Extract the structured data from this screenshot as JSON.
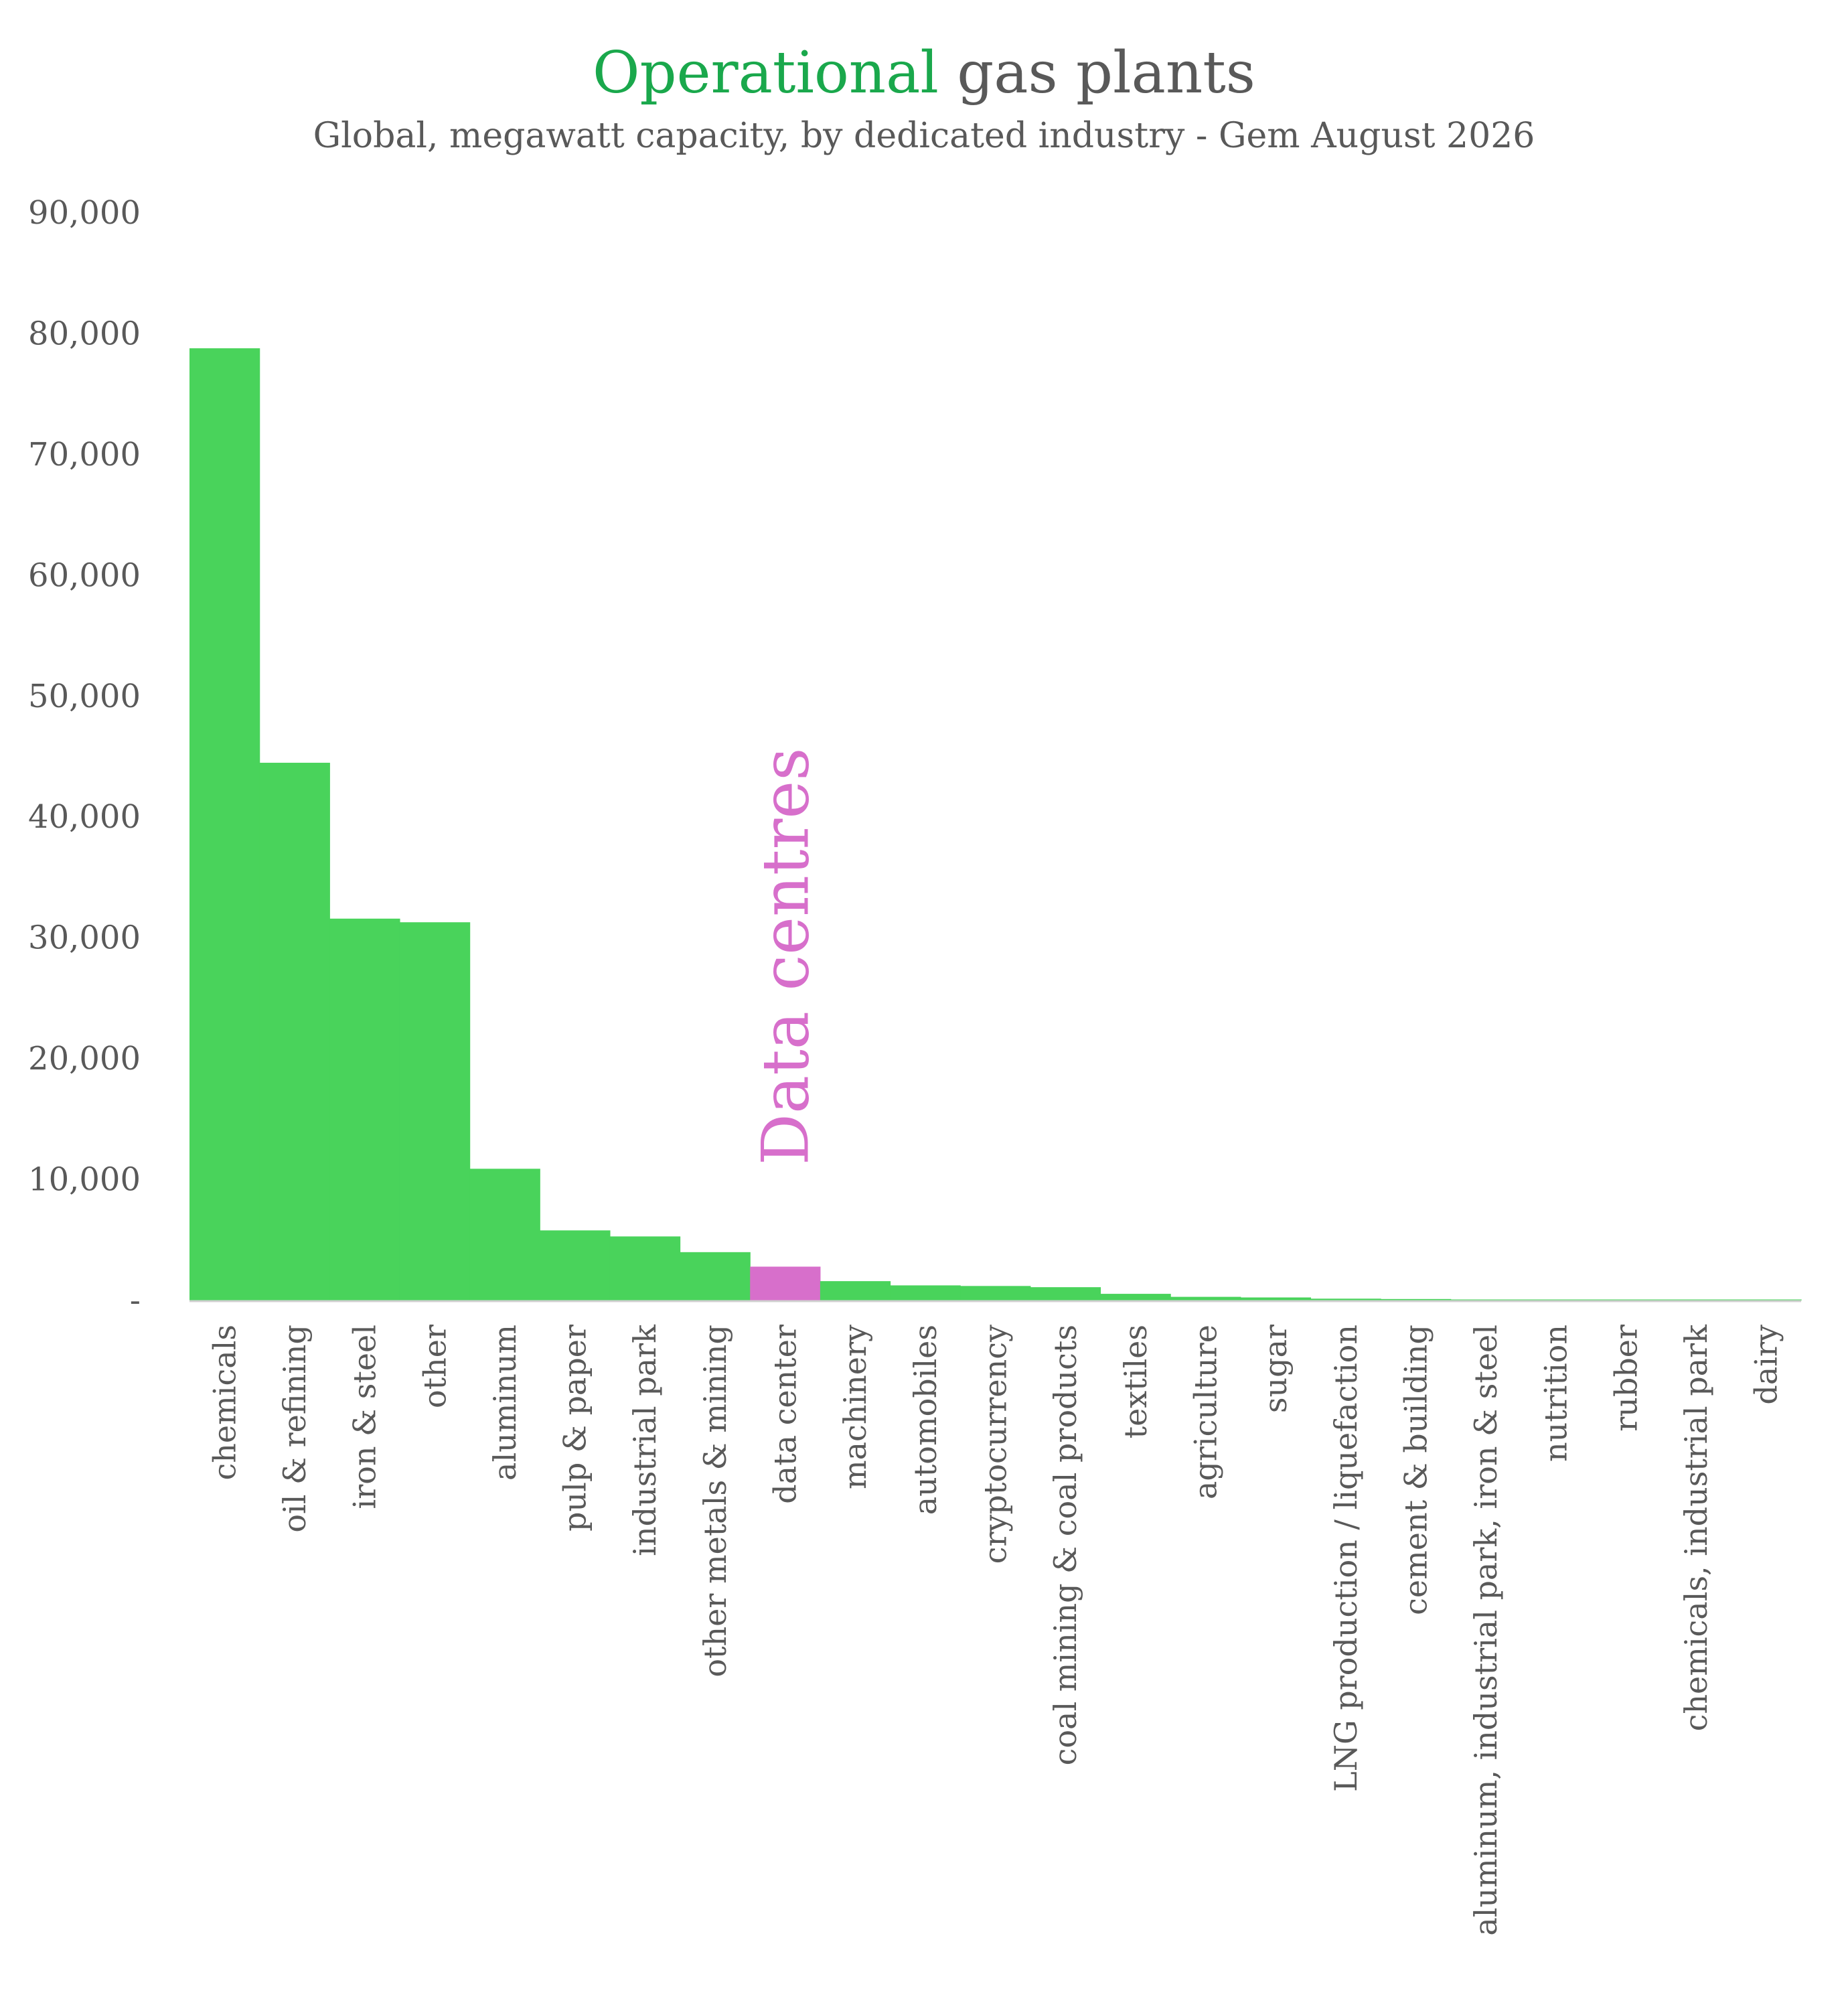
{
  "chart_data": {
    "type": "bar",
    "title": {
      "highlight": "Operational",
      "rest": " gas plants"
    },
    "subtitle": "Global, megawatt capacity, by dedicated industry - Gem August 2026",
    "annotation": "Data centres",
    "ylim": [
      0,
      90000
    ],
    "y_ticks": [
      "-",
      "10,000",
      "20,000",
      "30,000",
      "40,000",
      "50,000",
      "60,000",
      "70,000",
      "80,000",
      "90,000"
    ],
    "y_tick_values": [
      0,
      10000,
      20000,
      30000,
      40000,
      50000,
      60000,
      70000,
      80000,
      90000
    ],
    "highlight_category": "data center",
    "grid": false,
    "legend": "none",
    "categories": [
      "chemicals",
      "oil & refining",
      "iron & steel",
      "other",
      "aluminum",
      "pulp & paper",
      "industrial park",
      "other metals & mining",
      "data center",
      "machinery",
      "automobiles",
      "cryptocurrency",
      "coal mining & coal products",
      "textiles",
      "agriculture",
      "sugar",
      "LNG production / liquefaction",
      "cement & building",
      "aluminum, industrial park, iron & steel",
      "nutrition",
      "rubber",
      "chemicals, industrial park",
      "dairy"
    ],
    "values": [
      78800,
      44500,
      31600,
      31300,
      10900,
      5800,
      5300,
      4000,
      2800,
      1600,
      1250,
      1200,
      1100,
      550,
      300,
      250,
      150,
      120,
      80,
      40,
      25,
      15,
      10
    ],
    "colors": {
      "bar": "#49d35b",
      "highlight": "#d76fcb",
      "title_highlight": "#1aa84c",
      "text": "#595959",
      "axis": "#d0d0d0"
    }
  }
}
